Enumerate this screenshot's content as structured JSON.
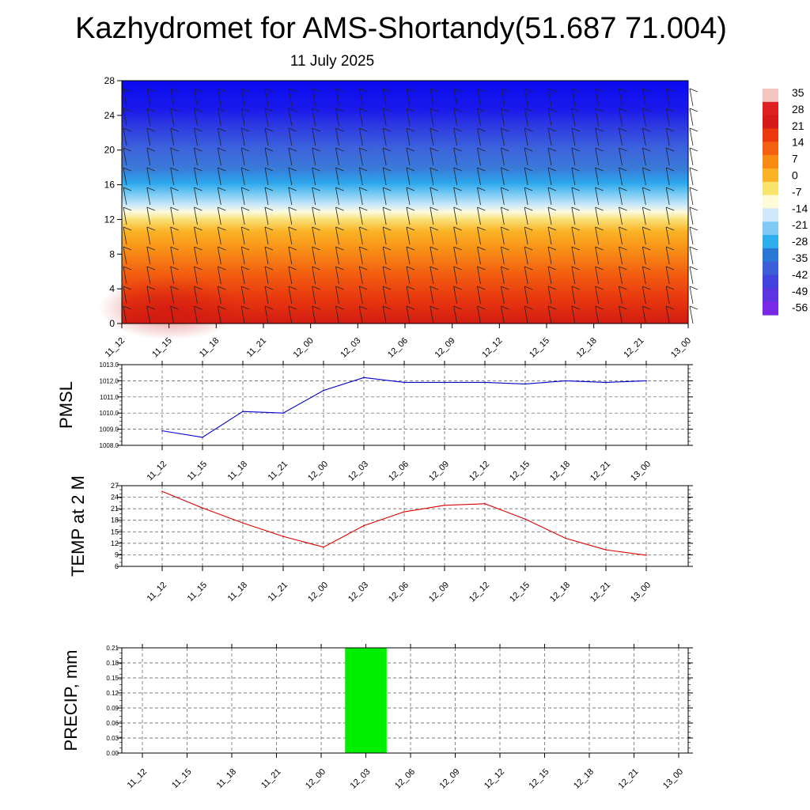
{
  "title": "Kazhydromet for AMS-Shortandy(51.687 71.004)",
  "subtitle": "11 July 2025",
  "time_labels": [
    "11_12",
    "11_15",
    "11_18",
    "11_21",
    "12_00",
    "12_03",
    "12_06",
    "12_09",
    "12_12",
    "12_15",
    "12_18",
    "12_21",
    "13_00"
  ],
  "colors": {
    "pmsl_line": "#0000cc",
    "temp_line": "#dd0000",
    "precip_bar": "#00ee00",
    "grid": "#555555"
  },
  "chart_data": [
    {
      "type": "heatmap",
      "name": "temperature-cross-section",
      "x": [
        "11_12",
        "11_15",
        "11_18",
        "11_21",
        "12_00",
        "12_03",
        "12_06",
        "12_09",
        "12_12",
        "12_15",
        "12_18",
        "12_21",
        "13_00"
      ],
      "ylim": [
        0,
        28
      ],
      "yticks": [
        0,
        4,
        8,
        12,
        16,
        20,
        24,
        28
      ],
      "colorbar_labels": [
        "35",
        "28",
        "21",
        "14",
        "7",
        "0",
        "-7",
        "-14",
        "-21",
        "-28",
        "-35",
        "-42",
        "-49",
        "-56"
      ],
      "colorbar_colors": [
        "#f4c6c0",
        "#e02020",
        "#d61a1a",
        "#ec3a10",
        "#f46010",
        "#f98a14",
        "#fbb225",
        "#f8e36c",
        "#fdfbd8",
        "#cfe9fa",
        "#7fcaf4",
        "#2faeee",
        "#2b78d4",
        "#3c5fd8",
        "#4242dc",
        "#5b35e0",
        "#7a28e8"
      ]
    },
    {
      "type": "line",
      "name": "pmsl",
      "ylabel": "PMSL",
      "categories": [
        "11_12",
        "11_15",
        "11_18",
        "11_21",
        "12_00",
        "12_03",
        "12_06",
        "12_09",
        "12_12",
        "12_15",
        "12_18",
        "12_21",
        "13_00"
      ],
      "values": [
        1008.9,
        1008.5,
        1010.1,
        1010.0,
        1011.4,
        1012.2,
        1011.9,
        1011.9,
        1011.9,
        1011.8,
        1012.0,
        1011.9,
        1012.0
      ],
      "ylim": [
        1008.0,
        1013.0
      ],
      "yticks": [
        "1008.0",
        "1009.0",
        "1010.0",
        "1011.0",
        "1012.0",
        "1013.0"
      ]
    },
    {
      "type": "line",
      "name": "temp-2m",
      "ylabel": "TEMP at 2 M",
      "categories": [
        "11_12",
        "11_15",
        "11_18",
        "11_21",
        "12_00",
        "12_03",
        "12_06",
        "12_09",
        "12_12",
        "12_15",
        "12_18",
        "12_21",
        "13_00"
      ],
      "values": [
        25.5,
        21.2,
        17.3,
        13.8,
        11.0,
        16.6,
        20.2,
        21.9,
        22.3,
        18.3,
        13.3,
        10.3,
        8.9
      ],
      "ylim": [
        6,
        27
      ],
      "yticks": [
        "6",
        "9",
        "12",
        "15",
        "18",
        "21",
        "24",
        "27"
      ]
    },
    {
      "type": "bar",
      "name": "precip",
      "ylabel": "PRECIP, mm",
      "categories": [
        "11_12",
        "11_15",
        "11_18",
        "11_21",
        "12_00",
        "12_03",
        "12_06",
        "12_09",
        "12_12",
        "12_15",
        "12_18",
        "12_21",
        "13_00"
      ],
      "values": [
        0,
        0,
        0,
        0,
        0,
        0.21,
        0,
        0,
        0,
        0,
        0,
        0,
        0
      ],
      "ylim": [
        0,
        0.21
      ],
      "yticks": [
        "0.00",
        "0.03",
        "0.06",
        "0.09",
        "0.12",
        "0.15",
        "0.18",
        "0.21"
      ]
    }
  ]
}
